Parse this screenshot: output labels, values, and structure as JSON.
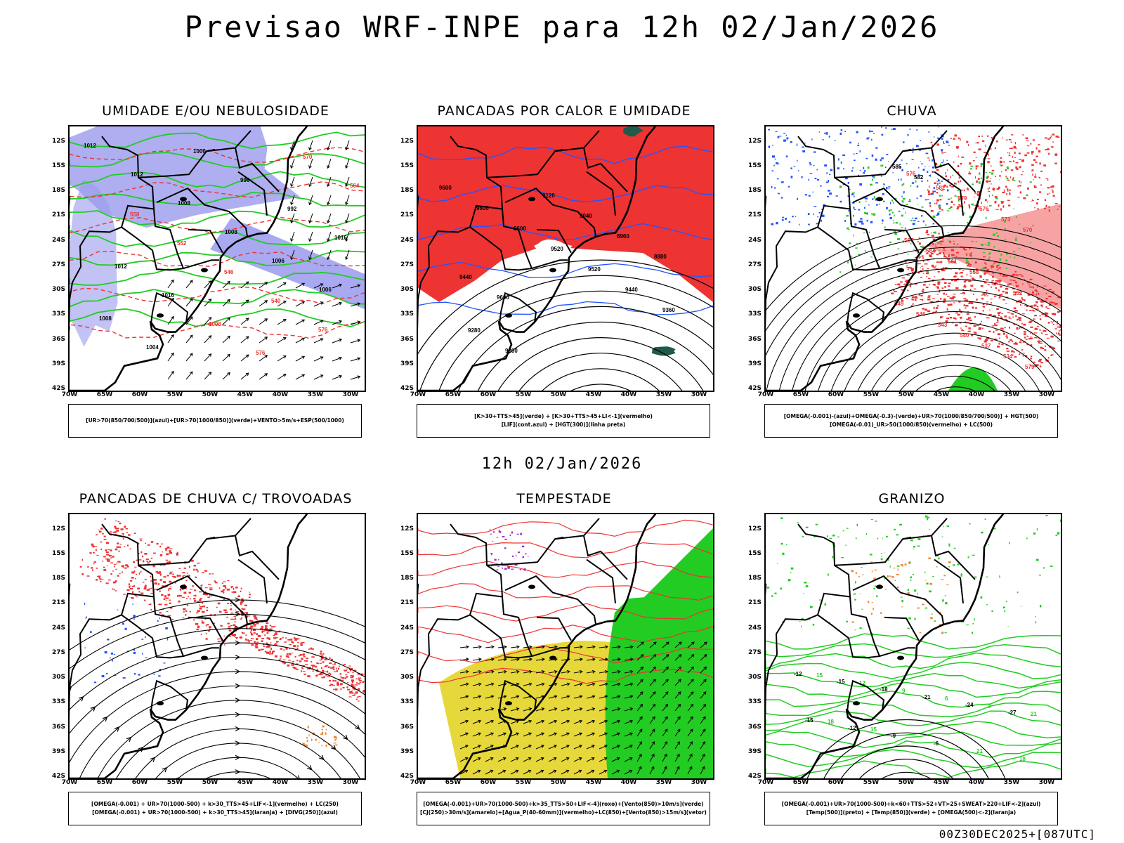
{
  "main_title": "Previsao WRF-INPE  para 12h 02/Jan/2026",
  "mid_title": "12h 02/Jan/2026",
  "footer": "00Z30DEC2025+[087UTC]",
  "axes": {
    "lat_ticks": [
      "12S",
      "15S",
      "18S",
      "21S",
      "24S",
      "27S",
      "30S",
      "33S",
      "36S",
      "39S",
      "42S"
    ],
    "lon_ticks": [
      "70W",
      "65W",
      "60W",
      "55W",
      "50W",
      "45W",
      "40W",
      "35W",
      "30W"
    ]
  },
  "colors": {
    "red": "#ee3333",
    "green": "#22cc22",
    "blue": "#2255ff",
    "lavender": "#9a9aee",
    "yellow": "#e6d83a",
    "orange": "#ee8833"
  },
  "panels": [
    {
      "id": "umidade",
      "title": "UMIDADE E/OU NEBULOSIDADE",
      "legend": [
        "[UR>70(850/700/500)](azul)+[UR>70(1000/850)](verde)+VENTO>5m/s+ESP(500/1000)"
      ],
      "labels": [
        "1012",
        "1012",
        "1008",
        "1008",
        "1006",
        "1006",
        "1008",
        "1004",
        "1000",
        "996",
        "992",
        "1016",
        "1012",
        "1016",
        "1008",
        "576",
        "570",
        "564",
        "558",
        "552",
        "546",
        "540",
        "576"
      ]
    },
    {
      "id": "pancadas",
      "title": "PANCADAS POR CALOR E UMIDADE",
      "legend": [
        "[K>30+TTS>45](verde) + [K>30+TTS>45+LI<-1](vermelho)",
        "[LIF](cont.azul) + [HGT(300)](linha preta)"
      ],
      "labels": [
        "9600",
        "9600",
        "9600",
        "9520",
        "9520",
        "9440",
        "9360",
        "9280",
        "9200",
        "9120",
        "9040",
        "8960",
        "8880",
        "9440",
        "9600"
      ]
    },
    {
      "id": "chuva",
      "title": "CHUVA",
      "legend": [
        "[OMEGA(-0.001)-(azul)+OMEGA(-0.3)-(verde)+UR>70(1000/850/700/500)] + HGT(500)",
        "[OMEGA(-0.01)_UR>50(1000/850)(vermelho) + LC(500)"
      ],
      "labels": [
        "585",
        "582",
        "582",
        "579",
        "576",
        "573",
        "570",
        "567",
        "564",
        "561",
        "558",
        "555",
        "552",
        "549",
        "546",
        "543",
        "540",
        "537",
        "534",
        "579",
        "576"
      ]
    },
    {
      "id": "trovoadas",
      "title": "PANCADAS DE CHUVA C/ TROVOADAS",
      "legend": [
        "[OMEGA(-0.001) + UR>70(1000-500) + k>30_TTS>45+LIF<-1](vermelho) + LC(250)",
        "[OMEGA(-0.001) + UR>70(1000-500) + k>30_TTS>45](laranja) + [DIVG(250)](azul)"
      ],
      "labels": []
    },
    {
      "id": "tempestade",
      "title": "TEMPESTADE",
      "legend": [
        "[OMEGA(-0.001)+UR>70(1000-500)+k>35_TTS>50+LIF<-4](roxo)+[Vento(850)>10m/s](verde)",
        "[CJ(250)>30m/s](amarelo)+[Agua_P(40-60mm)](vermelho)+LC(850)+[Vento(850)>15m/s](vetor)"
      ],
      "labels": []
    },
    {
      "id": "granizo",
      "title": "GRANIZO",
      "legend": [
        "[OMEGA(-0.001)+UR>70(1000-500)+k<60+TTS>52+VT>25+SWEAT>220+LIF<-2](azul)",
        "[Temp(500)](preto) + [Temp(850)](verde) + [OMEGA(500)<-2](laranja)"
      ],
      "labels": [
        "-12",
        "-15",
        "-18",
        "-21",
        "-24",
        "-27",
        "-15",
        "-12",
        "-9",
        "-6",
        "21",
        "18",
        "15",
        "12",
        "9",
        "6",
        "3",
        "21",
        "18",
        "15"
      ]
    }
  ]
}
